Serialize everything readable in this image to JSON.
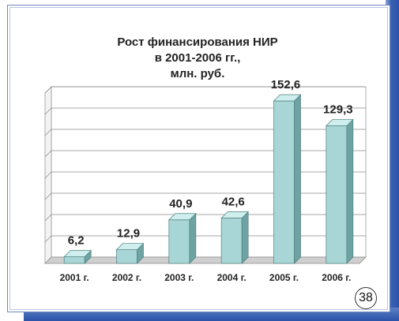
{
  "slide": {
    "page_number": "38",
    "colors": {
      "bar_front": "#a8d6d6",
      "bar_top": "#cfeeee",
      "bar_side": "#6fa3a3",
      "frame": "#6f86bf",
      "accent_stripe": "#2a52a8"
    }
  },
  "chart_data": {
    "type": "bar",
    "title_lines": [
      "Рост финансирования НИР",
      "в 2001-2006 гг.,",
      "млн. руб."
    ],
    "categories": [
      "2001 г.",
      "2002 г.",
      "2003 г.",
      "2004 г.",
      "2005 г.",
      "2006 г."
    ],
    "values": [
      6.2,
      12.9,
      40.9,
      42.6,
      152.6,
      129.3
    ],
    "value_labels": [
      "6,2",
      "12,9",
      "40,9",
      "42,6",
      "152,6",
      "129,3"
    ],
    "ylim": [
      0,
      160
    ],
    "grid": true,
    "legend": "none",
    "style": "3d"
  }
}
